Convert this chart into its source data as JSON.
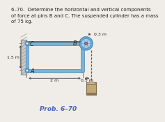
{
  "title_text": "6–70.  Determine the horizontal and vertical components\nof force at pins B and C. The suspended cylinder has a mass\nof 75 kg.",
  "prob_label": "Prob. 6–70",
  "dim_03": "0.3 m",
  "dim_15": "1.5 m",
  "dim_2": "2 m",
  "dim_05": "0.5 m",
  "frame_color": "#7ab4d8",
  "frame_edge": "#4a88b8",
  "wall_face": "#c8c8c8",
  "wall_edge": "#888888",
  "wall_hatch": "#999999",
  "pin_color": "#5a9cc8",
  "pulley_outer": "#6aaad8",
  "pulley_inner": "#aacce8",
  "pulley_hub": "#888888",
  "rope_color": "#555555",
  "cyl_face": "#c0a878",
  "cyl_edge": "#806848",
  "cyl_top": "#d0b888",
  "cyl_bot_band": "#907050",
  "text_color": "#222222",
  "prob_color": "#4466bb",
  "bg_color": "#f0ede8",
  "dim_color": "#444444"
}
